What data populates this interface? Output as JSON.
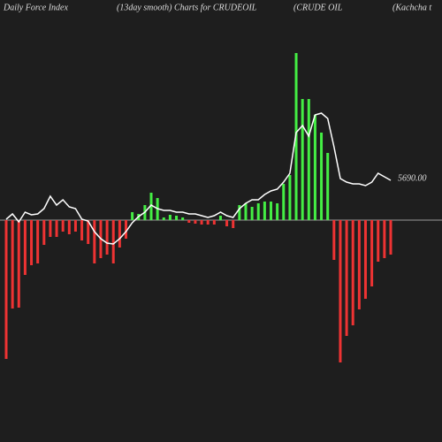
{
  "chart_data": {
    "type": "bar",
    "title": "Daily Force  Index",
    "subtitle": "(13day smooth) Charts for CRUDEOIL",
    "name": "(CRUDE OIL",
    "extra": "(Kachcha  t",
    "last_label": "5690.00",
    "positive_color": "#44ee44",
    "negative_color": "#ee3333",
    "line_color": "#ffffff",
    "ylim": [
      -160,
      190
    ],
    "values": [
      -157,
      -100,
      -99,
      -62,
      -51,
      -49,
      -28,
      -19,
      -19,
      -13,
      -16,
      -13,
      -23,
      -27,
      -49,
      -43,
      -39,
      -49,
      -31,
      -21,
      9,
      7,
      17,
      31,
      25,
      3,
      6,
      5,
      3,
      -3,
      -4,
      -5,
      -5,
      -5,
      5,
      -7,
      -9,
      17,
      19,
      15,
      19,
      21,
      21,
      19,
      41,
      51,
      189,
      137,
      137,
      119,
      99,
      76,
      -45,
      -161,
      -131,
      -119,
      -101,
      -89,
      -75,
      -47,
      -43,
      -39
    ],
    "line": [
      1,
      7,
      -2,
      9,
      6,
      7,
      13,
      27,
      17,
      23,
      15,
      13,
      1,
      -1,
      -13,
      -21,
      -26,
      -27,
      -21,
      -13,
      -3,
      4,
      9,
      17,
      13,
      11,
      11,
      9,
      9,
      7,
      7,
      5,
      3,
      5,
      9,
      5,
      3,
      13,
      19,
      23,
      23,
      29,
      33,
      35,
      43,
      53,
      99,
      107,
      95,
      119,
      121,
      115,
      83,
      47,
      43,
      41,
      41,
      39,
      43,
      53,
      49,
      45
    ]
  }
}
